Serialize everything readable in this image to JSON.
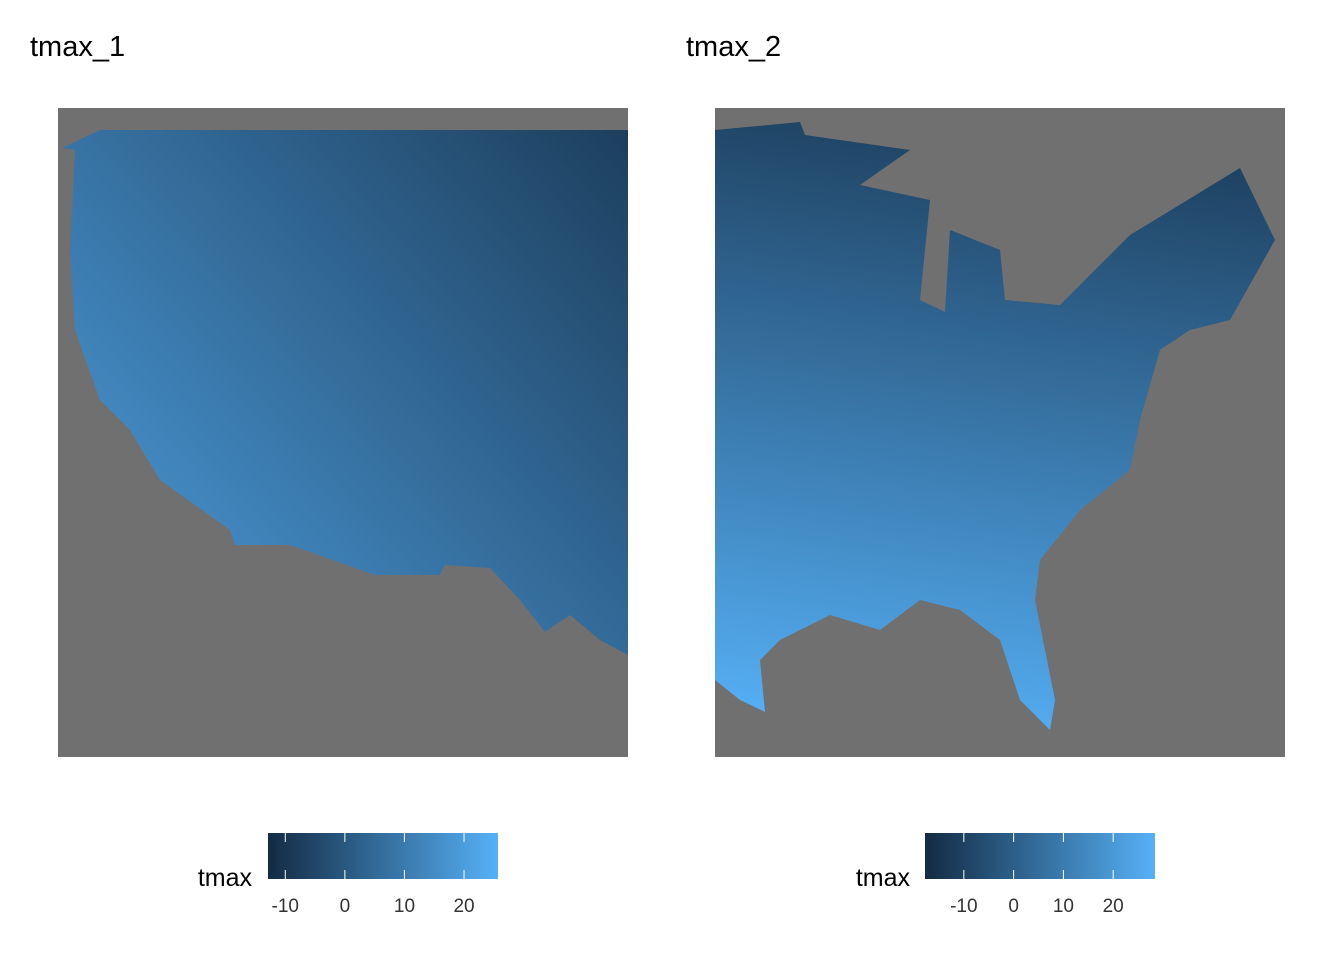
{
  "panels": [
    {
      "title": "tmax_1",
      "background": "#707070",
      "low_color": "#132B43",
      "high_color": "#56B1F7",
      "legend": {
        "title": "tmax",
        "lim": [
          -12.9,
          25.7
        ],
        "ticks": [
          -10,
          0,
          10,
          20
        ]
      }
    },
    {
      "title": "tmax_2",
      "background": "#707070",
      "low_color": "#132B43",
      "high_color": "#56B1F7",
      "legend": {
        "title": "tmax",
        "lim": [
          -17.8,
          28.4
        ],
        "ticks": [
          -10,
          0,
          10,
          20
        ]
      }
    }
  ]
}
